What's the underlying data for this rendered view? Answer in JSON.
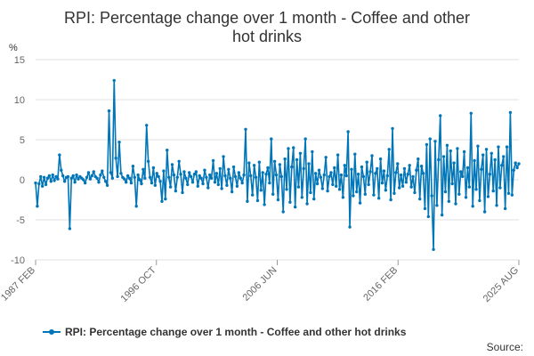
{
  "chart_data": {
    "type": "line",
    "title_line1": "RPI: Percentage change over 1 month - Coffee and other",
    "title_line2": "hot drinks",
    "ylabel": "%",
    "ylim": [
      -10,
      15
    ],
    "y_ticks": [
      "15",
      "10",
      "5",
      "0",
      "-5",
      "-10"
    ],
    "x_tick_labels": [
      "1987 FEB",
      "1996 OCT",
      "2006 JUN",
      "2016 FEB",
      "2025 AUG"
    ],
    "grid": true,
    "legend_position": "bottom",
    "series": [
      {
        "name": "RPI: Percentage change over 1 month - Coffee and other hot drinks",
        "color": "#0075b7",
        "marker": "circle",
        "values": [
          -0.4,
          -3.3,
          -0.5,
          0.4,
          -0.8,
          0.3,
          -0.6,
          0.2,
          0.5,
          -0.2,
          0.6,
          -0.1,
          0.4,
          0.1,
          3.1,
          1.2,
          0.5,
          -0.2,
          0.3,
          0.4,
          -6.1,
          0.2,
          0.5,
          -0.3,
          0.6,
          0.1,
          0.4,
          0.2,
          0.0,
          -0.4,
          0.3,
          0.9,
          0.1,
          0.5,
          1.0,
          0.4,
          0.2,
          -0.3,
          0.6,
          1.1,
          0.3,
          -0.2,
          -0.7,
          8.6,
          0.9,
          0.2,
          12.4,
          2.7,
          0.4,
          4.7,
          0.8,
          0.3,
          0.1,
          -0.3,
          0.5,
          0.2,
          -0.4,
          1.7,
          0.3,
          -3.3,
          0.6,
          0.0,
          -0.5,
          1.3,
          0.2,
          6.8,
          2.3,
          0.3,
          -0.4,
          1.5,
          -0.7,
          0.8,
          0.4,
          -0.2,
          -2.7,
          1.1,
          -2.4,
          3.7,
          0.3,
          -0.9,
          1.9,
          0.6,
          -1.4,
          0.3,
          2.3,
          0.7,
          -1.6,
          1.0,
          0.2,
          -0.6,
          0.9,
          0.4,
          -0.3,
          0.7,
          1.0,
          -0.8,
          0.5,
          0.2,
          -0.5,
          1.2,
          0.3,
          -1.0,
          0.6,
          0.2,
          2.4,
          -0.3,
          0.8,
          -0.6,
          1.4,
          -1.1,
          2.9,
          0.5,
          -0.7,
          1.3,
          0.2,
          -1.5,
          1.6,
          0.4,
          -0.8,
          0.9,
          0.2,
          -0.4,
          0.6,
          6.3,
          -2.7,
          2.1,
          0.5,
          -1.9,
          1.8,
          0.3,
          -2.6,
          2.2,
          -1.3,
          0.9,
          -3.1,
          0.7,
          1.5,
          -0.4,
          5.1,
          -1.8,
          2.3,
          0.6,
          -2.5,
          1.9,
          0.4,
          -4.0,
          2.6,
          -1.2,
          3.9,
          -2.8,
          1.6,
          4.0,
          -3.4,
          2.5,
          -0.9,
          3.3,
          -2.2,
          1.4,
          5.1,
          -3.0,
          2.0,
          -1.6,
          3.5,
          -2.4,
          0.8,
          -0.5,
          1.2,
          0.3,
          -1.1,
          0.6,
          2.8,
          -1.4,
          0.4,
          0.9,
          -0.6,
          1.5,
          -0.8,
          3.1,
          -1.2,
          0.6,
          -2.2,
          1.8,
          0.5,
          6.0,
          -5.9,
          1.3,
          -2.0,
          3.2,
          -1.5,
          0.7,
          -2.9,
          1.6,
          0.4,
          -1.8,
          2.2,
          -0.6,
          1.0,
          3.0,
          -1.9,
          0.8,
          1.4,
          -2.3,
          2.6,
          -0.4,
          1.1,
          -1.3,
          0.5,
          3.8,
          -2.5,
          6.4,
          -1.7,
          0.9,
          2.0,
          -1.0,
          0.6,
          -0.8,
          1.4,
          -0.3,
          0.7,
          1.8,
          -0.9,
          0.4,
          -1.6,
          1.2,
          2.6,
          -2.4,
          1.7,
          0.8,
          -3.6,
          4.4,
          -4.6,
          5.1,
          -2.0,
          -8.7,
          4.8,
          -3.2,
          2.5,
          8.0,
          -4.4,
          2.9,
          -1.5,
          4.3,
          -2.7,
          3.6,
          -0.5,
          2.1,
          -3.0,
          3.9,
          -1.8,
          1.0,
          0.4,
          3.5,
          -2.2,
          1.5,
          -0.9,
          8.3,
          -3.3,
          2.4,
          -1.2,
          4.2,
          -2.6,
          1.3,
          3.1,
          -4.0,
          3.8,
          -2.1,
          0.7,
          3.3,
          -1.4,
          2.5,
          -3.2,
          4.1,
          -1.0,
          1.8,
          2.9,
          -3.6,
          4.1,
          -1.7,
          8.4,
          -1.9,
          1.2,
          2.1,
          1.5,
          2.0
        ]
      }
    ]
  },
  "legend": {
    "label": "RPI: Percentage change over 1 month - Coffee and other hot drinks"
  },
  "source_label": "Source:"
}
